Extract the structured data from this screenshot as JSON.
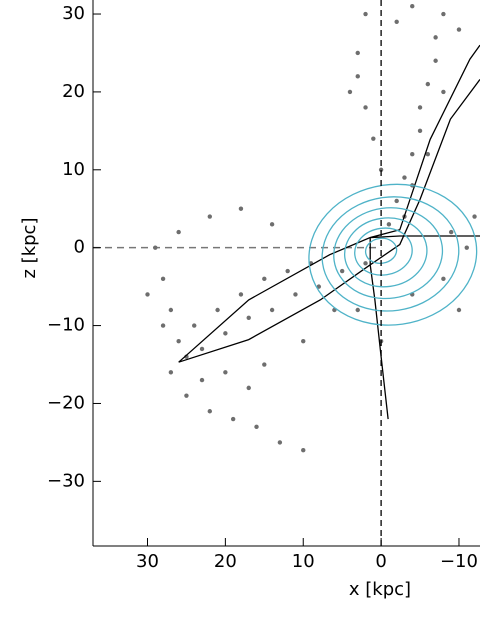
{
  "chart_data": {
    "type": "scatter",
    "xlabel": "x [kpc]",
    "ylabel": "z [kpc]",
    "xlim": [
      37,
      -12.7
    ],
    "ylim": [
      -38.3,
      31.8
    ],
    "xticks": [
      30,
      20,
      10,
      0,
      {
        "value": -10,
        "label": "−10"
      }
    ],
    "yticks": [
      30,
      20,
      10,
      0,
      {
        "value": -10,
        "label": "−10"
      },
      {
        "value": -20,
        "label": "−20"
      },
      {
        "value": -30,
        "label": "−30"
      }
    ],
    "zero_lines": true,
    "series": [
      {
        "color": "#6e6e6e",
        "style": "points",
        "x": [
          2,
          5,
          8,
          11,
          14,
          17,
          20,
          23,
          25,
          26,
          24,
          21,
          18,
          15,
          12,
          9,
          27,
          28,
          29,
          26,
          22,
          18,
          14,
          28,
          27,
          25,
          22,
          19,
          16,
          13,
          10,
          20,
          15,
          10,
          6,
          3,
          0,
          30,
          23,
          17,
          -1,
          -2,
          -3,
          -4,
          -5,
          -5,
          -6,
          -7,
          -7,
          -8,
          -3,
          -4,
          -6,
          -8,
          -10,
          2,
          3,
          3,
          1,
          4,
          2,
          -2,
          -4,
          0,
          -9,
          -11,
          -8,
          -4,
          -10,
          -12
        ],
        "values": [
          -2,
          -3,
          -5,
          -6,
          -8,
          -9,
          -11,
          -13,
          -14,
          -12,
          -10,
          -8,
          -6,
          -4,
          -3,
          -2,
          -8,
          -4,
          0,
          2,
          4,
          5,
          3,
          -10,
          -16,
          -19,
          -21,
          -22,
          -23,
          -25,
          -26,
          -16,
          -15,
          -12,
          -8,
          -8,
          -12,
          -6,
          -17,
          -18,
          3,
          6,
          9,
          12,
          15,
          18,
          21,
          24,
          27,
          30,
          4,
          8,
          12,
          20,
          28,
          18,
          22,
          25,
          14,
          20,
          30,
          29,
          31,
          10,
          2,
          0,
          -4,
          -6,
          -8,
          4
        ]
      },
      {
        "color": "#000000",
        "style": "line",
        "x": [
          -0.9,
          0,
          0.8,
          1.4,
          1.4,
          null,
          26,
          17,
          6.6,
          1.4,
          -2.4,
          -12.7,
          null,
          26,
          17,
          7.8,
          1.4,
          -2.4,
          -5,
          -8.9,
          -12.7,
          null,
          1.4,
          -2.4,
          -6.3,
          -11.4,
          -12.7
        ],
        "values": [
          -22,
          -14,
          -6.7,
          -2.2,
          1.3,
          null,
          -14.7,
          -6.7,
          -0.9,
          1.3,
          1.5,
          1.5,
          null,
          -14.7,
          -11.8,
          -6.7,
          -2.2,
          0.4,
          6.2,
          16.5,
          21.6,
          null,
          1.3,
          2.3,
          13.9,
          24.2,
          26
        ]
      }
    ],
    "contours": {
      "color": "#4fb3c8",
      "cx": [
        -1.5,
        -1.2,
        -0.9,
        -0.6,
        -0.3,
        0
      ],
      "cz": [
        -0.9,
        -0.8,
        -0.7,
        -0.6,
        -0.5,
        -0.4
      ],
      "rx": [
        10.8,
        8.8,
        7,
        5.3,
        3.7,
        2
      ],
      "rz": [
        9,
        7.3,
        5.8,
        4.4,
        3,
        1.6
      ]
    }
  }
}
